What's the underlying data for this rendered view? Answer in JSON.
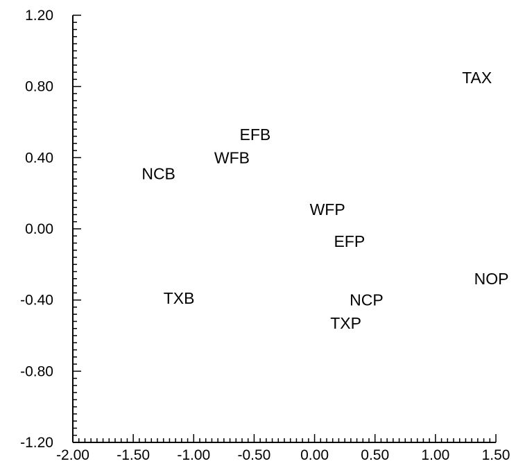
{
  "chart_data": {
    "type": "scatter",
    "title": "",
    "xlabel": "",
    "ylabel": "",
    "xlim": [
      -2.0,
      1.5
    ],
    "ylim": [
      -1.2,
      1.2
    ],
    "grid": false,
    "x_ticks": [
      -2.0,
      -1.5,
      -1.0,
      -0.5,
      0.0,
      0.5,
      1.0,
      1.5
    ],
    "x_tick_labels": [
      "-2.00",
      "-1.50",
      "-1.00",
      "-0.50",
      "0.00",
      "0.50",
      "1.00",
      "1.50"
    ],
    "y_ticks": [
      -1.2,
      -0.8,
      -0.4,
      0.0,
      0.4,
      0.8,
      1.2
    ],
    "y_tick_labels": [
      "-1.20",
      "-0.80",
      "-0.40",
      "0.00",
      "0.40",
      "0.80",
      "1.20"
    ],
    "points": [
      {
        "label": "TAX",
        "x": 1.22,
        "y": 0.85
      },
      {
        "label": "EFB",
        "x": -0.62,
        "y": 0.53
      },
      {
        "label": "WFB",
        "x": -0.83,
        "y": 0.4
      },
      {
        "label": "NCB",
        "x": -1.43,
        "y": 0.31
      },
      {
        "label": "WFP",
        "x": -0.04,
        "y": 0.11
      },
      {
        "label": "EFP",
        "x": 0.16,
        "y": -0.07
      },
      {
        "label": "NOP",
        "x": 1.32,
        "y": -0.28
      },
      {
        "label": "TXB",
        "x": -1.25,
        "y": -0.39
      },
      {
        "label": "NCP",
        "x": 0.29,
        "y": -0.4
      },
      {
        "label": "TXP",
        "x": 0.13,
        "y": -0.53
      }
    ]
  }
}
